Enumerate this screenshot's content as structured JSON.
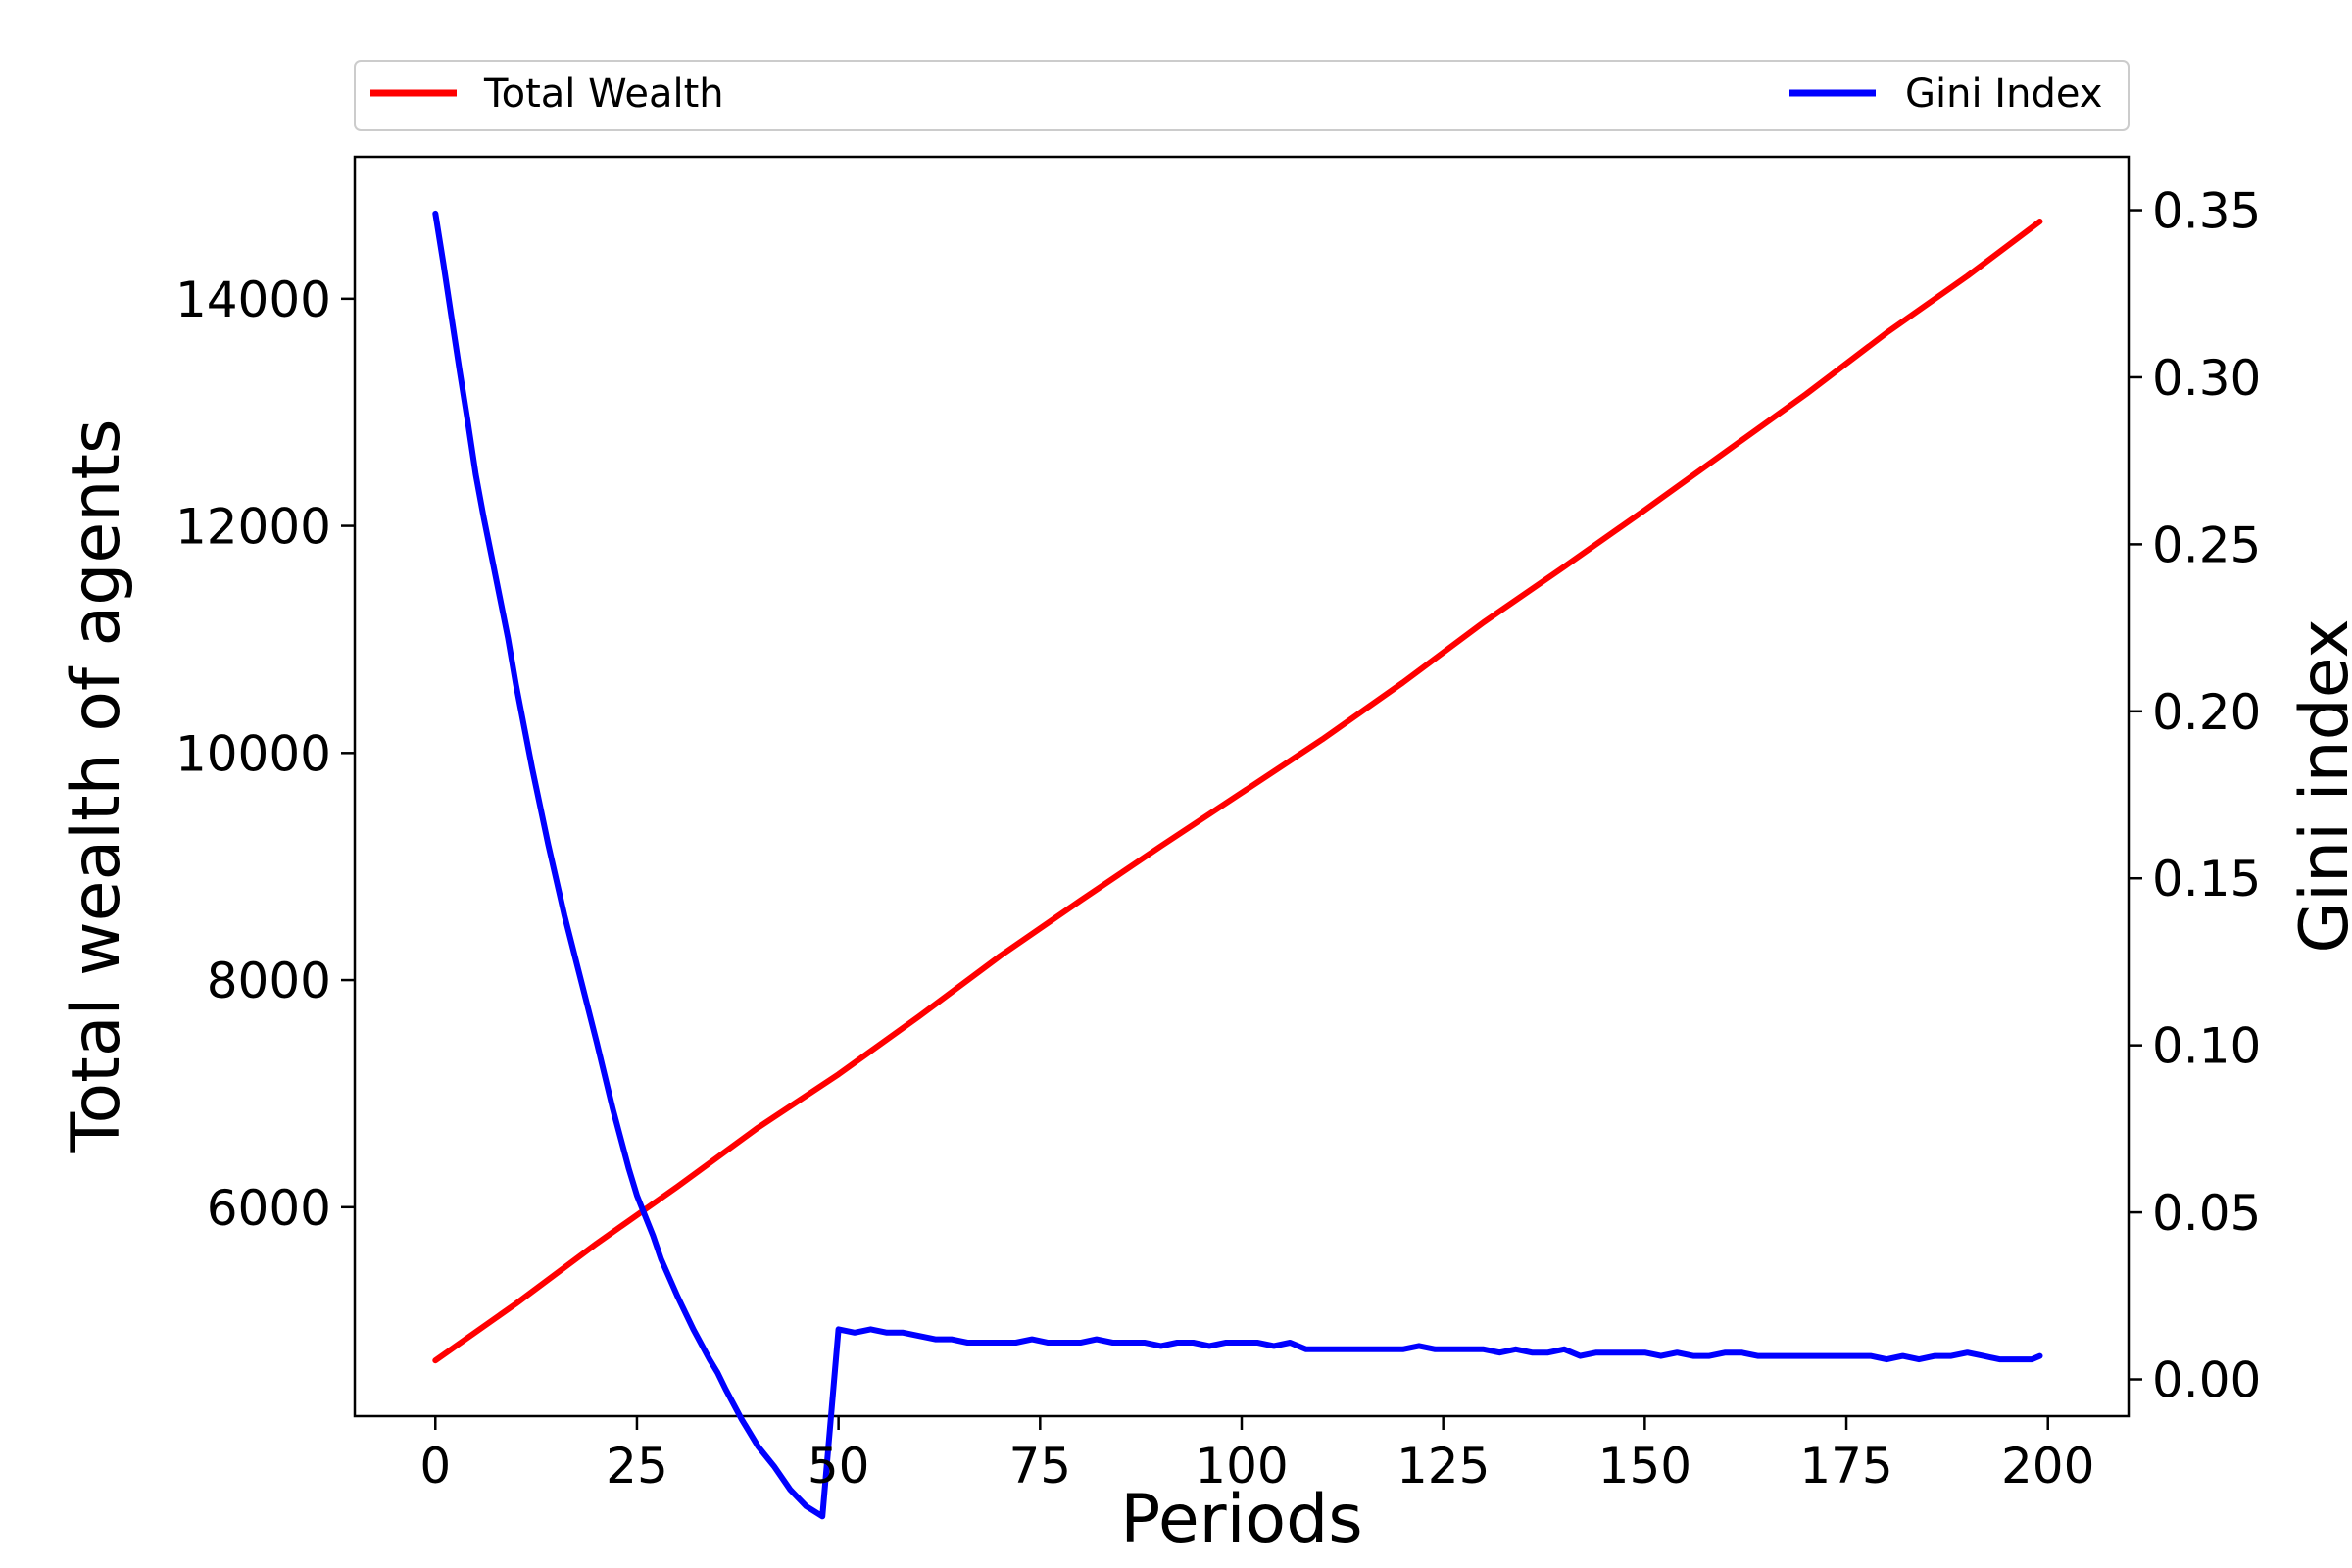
{
  "chart_data": {
    "type": "line",
    "xlabel": "Periods",
    "ylabel": "Total wealth of agents",
    "y2label": "Gini index",
    "xlim": [
      -10,
      210
    ],
    "ylim": [
      4160,
      15250
    ],
    "y2lim": [
      -0.011,
      0.366
    ],
    "xticks": [
      0,
      25,
      50,
      75,
      100,
      125,
      150,
      175,
      200
    ],
    "yticks": [
      6000,
      8000,
      10000,
      12000,
      14000
    ],
    "y2ticks": [
      0.0,
      0.05,
      0.1,
      0.15,
      0.2,
      0.25,
      0.3,
      0.35
    ],
    "legend_placement": "top, above plot",
    "grid": false,
    "series": [
      {
        "name": "Total Wealth",
        "axis": "left",
        "color": "#ff0000",
        "x": [
          0,
          10,
          20,
          30,
          40,
          50,
          60,
          70,
          80,
          90,
          100,
          110,
          120,
          130,
          140,
          150,
          160,
          170,
          180,
          190,
          199
        ],
        "values": [
          4650,
          5150,
          5680,
          6180,
          6700,
          7170,
          7680,
          8210,
          8700,
          9180,
          9650,
          10120,
          10620,
          11150,
          11640,
          12140,
          12650,
          13160,
          13700,
          14200,
          14680
        ]
      },
      {
        "name": "Gini Index",
        "axis": "right",
        "color": "#0000ff",
        "x": [
          0,
          1,
          2,
          3,
          4,
          5,
          6,
          7,
          8,
          9,
          10,
          12,
          14,
          16,
          18,
          20,
          22,
          24,
          25,
          27,
          28,
          30,
          32,
          34,
          35,
          36,
          38,
          40,
          42,
          44,
          46,
          48,
          50,
          52,
          54,
          56,
          58,
          60,
          62,
          64,
          66,
          68,
          70,
          72,
          74,
          76,
          78,
          80,
          82,
          84,
          86,
          88,
          90,
          92,
          94,
          96,
          98,
          100,
          102,
          104,
          106,
          108,
          110,
          112,
          114,
          116,
          118,
          120,
          122,
          124,
          126,
          128,
          130,
          132,
          134,
          136,
          138,
          140,
          142,
          144,
          146,
          148,
          150,
          152,
          154,
          156,
          158,
          160,
          162,
          164,
          166,
          168,
          170,
          172,
          174,
          176,
          178,
          180,
          182,
          184,
          186,
          188,
          190,
          192,
          194,
          196,
          198,
          199
        ],
        "values": [
          0.349,
          0.334,
          0.318,
          0.302,
          0.287,
          0.271,
          0.258,
          0.246,
          0.234,
          0.222,
          0.208,
          0.183,
          0.16,
          0.139,
          0.12,
          0.101,
          0.081,
          0.063,
          0.055,
          0.043,
          0.036,
          0.025,
          0.015,
          0.006,
          0.002,
          -0.003,
          -0.012,
          -0.02,
          -0.026,
          -0.033,
          -0.038,
          -0.041,
          0.015,
          0.014,
          0.015,
          0.014,
          0.014,
          0.013,
          0.012,
          0.012,
          0.011,
          0.011,
          0.011,
          0.011,
          0.012,
          0.011,
          0.011,
          0.011,
          0.012,
          0.011,
          0.011,
          0.011,
          0.01,
          0.011,
          0.011,
          0.01,
          0.011,
          0.011,
          0.011,
          0.01,
          0.011,
          0.009,
          0.009,
          0.009,
          0.009,
          0.009,
          0.009,
          0.009,
          0.01,
          0.009,
          0.009,
          0.009,
          0.009,
          0.008,
          0.009,
          0.008,
          0.008,
          0.009,
          0.007,
          0.008,
          0.008,
          0.008,
          0.008,
          0.007,
          0.008,
          0.007,
          0.007,
          0.008,
          0.008,
          0.007,
          0.007,
          0.007,
          0.007,
          0.007,
          0.007,
          0.007,
          0.007,
          0.006,
          0.007,
          0.006,
          0.007,
          0.007,
          0.008,
          0.007,
          0.006,
          0.006,
          0.006,
          0.007
        ]
      }
    ]
  }
}
